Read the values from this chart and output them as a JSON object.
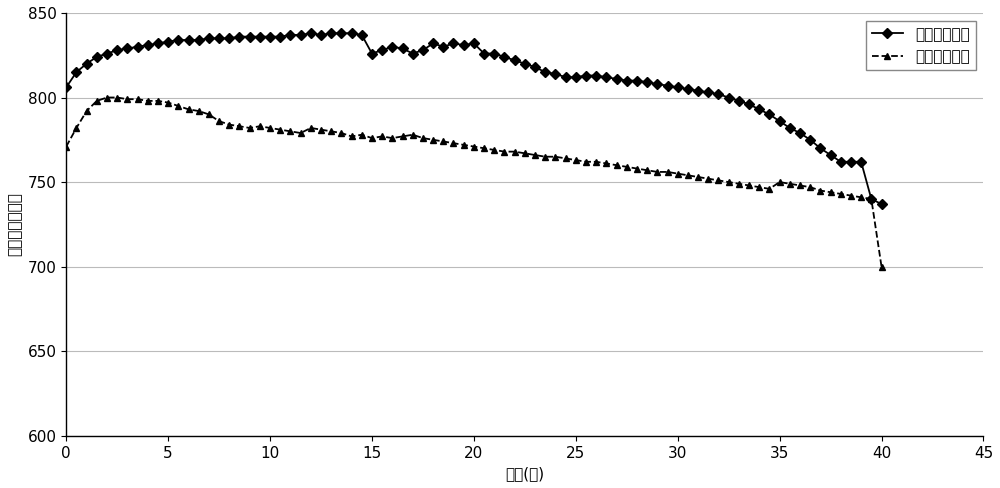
{
  "series1_label": "精轧终轧温度",
  "series2_label": "冷却开始温度",
  "xlabel": "长度(米)",
  "ylabel": "温度（摄氏度）",
  "xlim": [
    0,
    45
  ],
  "ylim": [
    600,
    850
  ],
  "xticks": [
    0,
    5,
    10,
    15,
    20,
    25,
    30,
    35,
    40,
    45
  ],
  "yticks": [
    600,
    650,
    700,
    750,
    800,
    850
  ],
  "series1_x": [
    0.0,
    0.5,
    1.0,
    1.5,
    2.0,
    2.5,
    3.0,
    3.5,
    4.0,
    4.5,
    5.0,
    5.5,
    6.0,
    6.5,
    7.0,
    7.5,
    8.0,
    8.5,
    9.0,
    9.5,
    10.0,
    10.5,
    11.0,
    11.5,
    12.0,
    12.5,
    13.0,
    13.5,
    14.0,
    14.5,
    15.0,
    15.5,
    16.0,
    16.5,
    17.0,
    17.5,
    18.0,
    18.5,
    19.0,
    19.5,
    20.0,
    20.5,
    21.0,
    21.5,
    22.0,
    22.5,
    23.0,
    23.5,
    24.0,
    24.5,
    25.0,
    25.5,
    26.0,
    26.5,
    27.0,
    27.5,
    28.0,
    28.5,
    29.0,
    29.5,
    30.0,
    30.5,
    31.0,
    31.5,
    32.0,
    32.5,
    33.0,
    33.5,
    34.0,
    34.5,
    35.0,
    35.5,
    36.0,
    36.5,
    37.0,
    37.5,
    38.0,
    38.5,
    39.0,
    39.5,
    40.0
  ],
  "series1_y": [
    806,
    815,
    820,
    824,
    826,
    828,
    829,
    830,
    831,
    832,
    833,
    834,
    834,
    834,
    835,
    835,
    835,
    836,
    836,
    836,
    836,
    836,
    837,
    837,
    838,
    837,
    838,
    838,
    838,
    837,
    826,
    828,
    830,
    829,
    826,
    828,
    832,
    830,
    832,
    831,
    832,
    826,
    826,
    824,
    822,
    820,
    818,
    815,
    814,
    812,
    812,
    813,
    813,
    812,
    811,
    810,
    810,
    809,
    808,
    807,
    806,
    805,
    804,
    803,
    802,
    800,
    798,
    796,
    793,
    790,
    786,
    782,
    779,
    775,
    770,
    766,
    762,
    762,
    762,
    740,
    737
  ],
  "series2_x": [
    0.0,
    0.5,
    1.0,
    1.5,
    2.0,
    2.5,
    3.0,
    3.5,
    4.0,
    4.5,
    5.0,
    5.5,
    6.0,
    6.5,
    7.0,
    7.5,
    8.0,
    8.5,
    9.0,
    9.5,
    10.0,
    10.5,
    11.0,
    11.5,
    12.0,
    12.5,
    13.0,
    13.5,
    14.0,
    14.5,
    15.0,
    15.5,
    16.0,
    16.5,
    17.0,
    17.5,
    18.0,
    18.5,
    19.0,
    19.5,
    20.0,
    20.5,
    21.0,
    21.5,
    22.0,
    22.5,
    23.0,
    23.5,
    24.0,
    24.5,
    25.0,
    25.5,
    26.0,
    26.5,
    27.0,
    27.5,
    28.0,
    28.5,
    29.0,
    29.5,
    30.0,
    30.5,
    31.0,
    31.5,
    32.0,
    32.5,
    33.0,
    33.5,
    34.0,
    34.5,
    35.0,
    35.5,
    36.0,
    36.5,
    37.0,
    37.5,
    38.0,
    38.5,
    39.0,
    39.5,
    40.0
  ],
  "series2_y": [
    771,
    782,
    792,
    798,
    800,
    800,
    799,
    799,
    798,
    798,
    797,
    795,
    793,
    792,
    790,
    786,
    784,
    783,
    782,
    783,
    782,
    781,
    780,
    779,
    782,
    781,
    780,
    779,
    777,
    778,
    776,
    777,
    776,
    777,
    778,
    776,
    775,
    774,
    773,
    772,
    771,
    770,
    769,
    768,
    768,
    767,
    766,
    765,
    765,
    764,
    763,
    762,
    762,
    761,
    760,
    759,
    758,
    757,
    756,
    756,
    755,
    754,
    753,
    752,
    751,
    750,
    749,
    748,
    747,
    746,
    750,
    749,
    748,
    747,
    745,
    744,
    743,
    742,
    741,
    740,
    700
  ],
  "line_color": "#000000",
  "bg_color": "#ffffff",
  "axis_fontsize": 11,
  "tick_fontsize": 11,
  "legend_fontsize": 11
}
